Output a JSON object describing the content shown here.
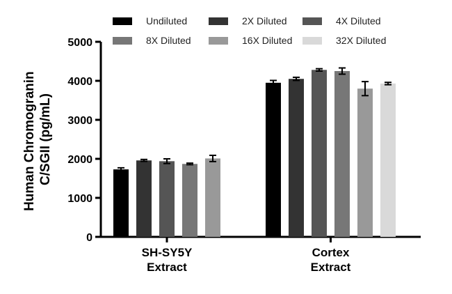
{
  "chart_data": {
    "type": "bar",
    "title": "",
    "ylabel": [
      "Human Chromogranin",
      "C/SGII (pg/mL)"
    ],
    "ylim": [
      0,
      5000
    ],
    "yticks": [
      0,
      1000,
      2000,
      3000,
      4000,
      5000
    ],
    "grid": false,
    "legend_position": "top",
    "categories": [
      {
        "lines": [
          "SH-SY5Y",
          "Extract"
        ]
      },
      {
        "lines": [
          "Cortex",
          "Extract"
        ]
      }
    ],
    "series": [
      {
        "name": "Undiluted",
        "color": "#000000",
        "values": [
          1730,
          3950
        ],
        "errors": [
          40,
          60
        ]
      },
      {
        "name": "2X Diluted",
        "color": "#333333",
        "values": [
          1960,
          4050
        ],
        "errors": [
          25,
          40
        ]
      },
      {
        "name": "4X Diluted",
        "color": "#555555",
        "values": [
          1940,
          4280
        ],
        "errors": [
          60,
          30
        ]
      },
      {
        "name": "8X Diluted",
        "color": "#777777",
        "values": [
          1870,
          4250
        ],
        "errors": [
          20,
          80
        ]
      },
      {
        "name": "16X Diluted",
        "color": "#999999",
        "values": [
          2010,
          3800
        ],
        "errors": [
          80,
          180
        ]
      },
      {
        "name": "32X Diluted",
        "color": "#d9d9d9",
        "values": [
          null,
          3930
        ],
        "errors": [
          null,
          30
        ]
      }
    ]
  }
}
